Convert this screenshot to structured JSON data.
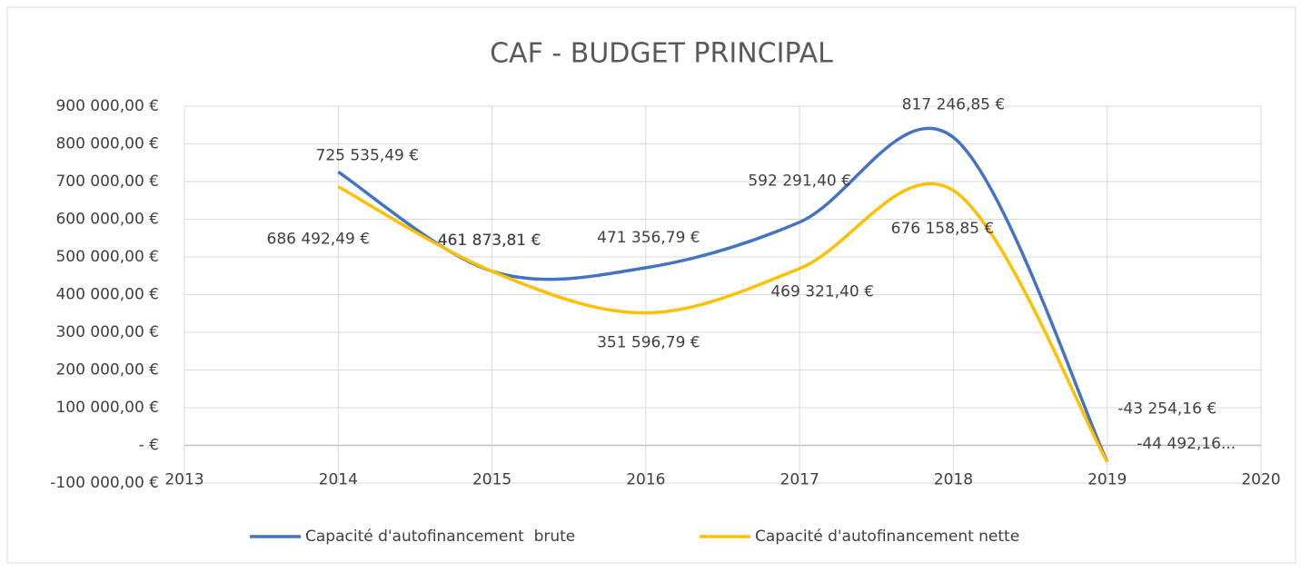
{
  "chart_data": {
    "type": "scatter",
    "title": "CAF - BUDGET PRINCIPAL",
    "smooth": true,
    "xlim": [
      2013,
      2020
    ],
    "xticks": [
      2013,
      2014,
      2015,
      2016,
      2017,
      2018,
      2019,
      2020
    ],
    "ylim": [
      -100000,
      900000
    ],
    "yticks": [
      {
        "value": -100000,
        "label": "-100 000,00 €"
      },
      {
        "value": 0,
        "label": "-   €"
      },
      {
        "value": 100000,
        "label": "100 000,00 €"
      },
      {
        "value": 200000,
        "label": "200 000,00 €"
      },
      {
        "value": 300000,
        "label": "300 000,00 €"
      },
      {
        "value": 400000,
        "label": "400 000,00 €"
      },
      {
        "value": 500000,
        "label": "500 000,00 €"
      },
      {
        "value": 600000,
        "label": "600 000,00 €"
      },
      {
        "value": 700000,
        "label": "700 000,00 €"
      },
      {
        "value": 800000,
        "label": "800 000,00 €"
      },
      {
        "value": 900000,
        "label": "900 000,00 €"
      }
    ],
    "grid": true,
    "legend": "bottom",
    "series": [
      {
        "name": "Capacité d'autofinancement  brute",
        "color": "#4472c4",
        "x": [
          2014,
          2015,
          2016,
          2017,
          2018,
          2019
        ],
        "values": [
          725535.49,
          461873.81,
          471356.79,
          592291.4,
          817246.85,
          -43254.16
        ],
        "value_labels": [
          "725 535,49 €",
          "461 873,81 €",
          "471 356,79 €",
          "592 291,40 €",
          "817 246,85 €",
          "-43 254,16 €"
        ]
      },
      {
        "name": "Capacité d'autofinancement nette",
        "color": "#ffc000",
        "x": [
          2014,
          2015,
          2016,
          2017,
          2018,
          2019
        ],
        "values": [
          686492.49,
          461873.81,
          351596.79,
          469321.4,
          676158.85,
          -44492.16
        ],
        "value_labels": [
          "686 492,49 €",
          "461 873,81 €",
          "351 596,79 €",
          "469 321,40 €",
          "676 158,85 €",
          "-44 492,16..."
        ]
      }
    ]
  }
}
